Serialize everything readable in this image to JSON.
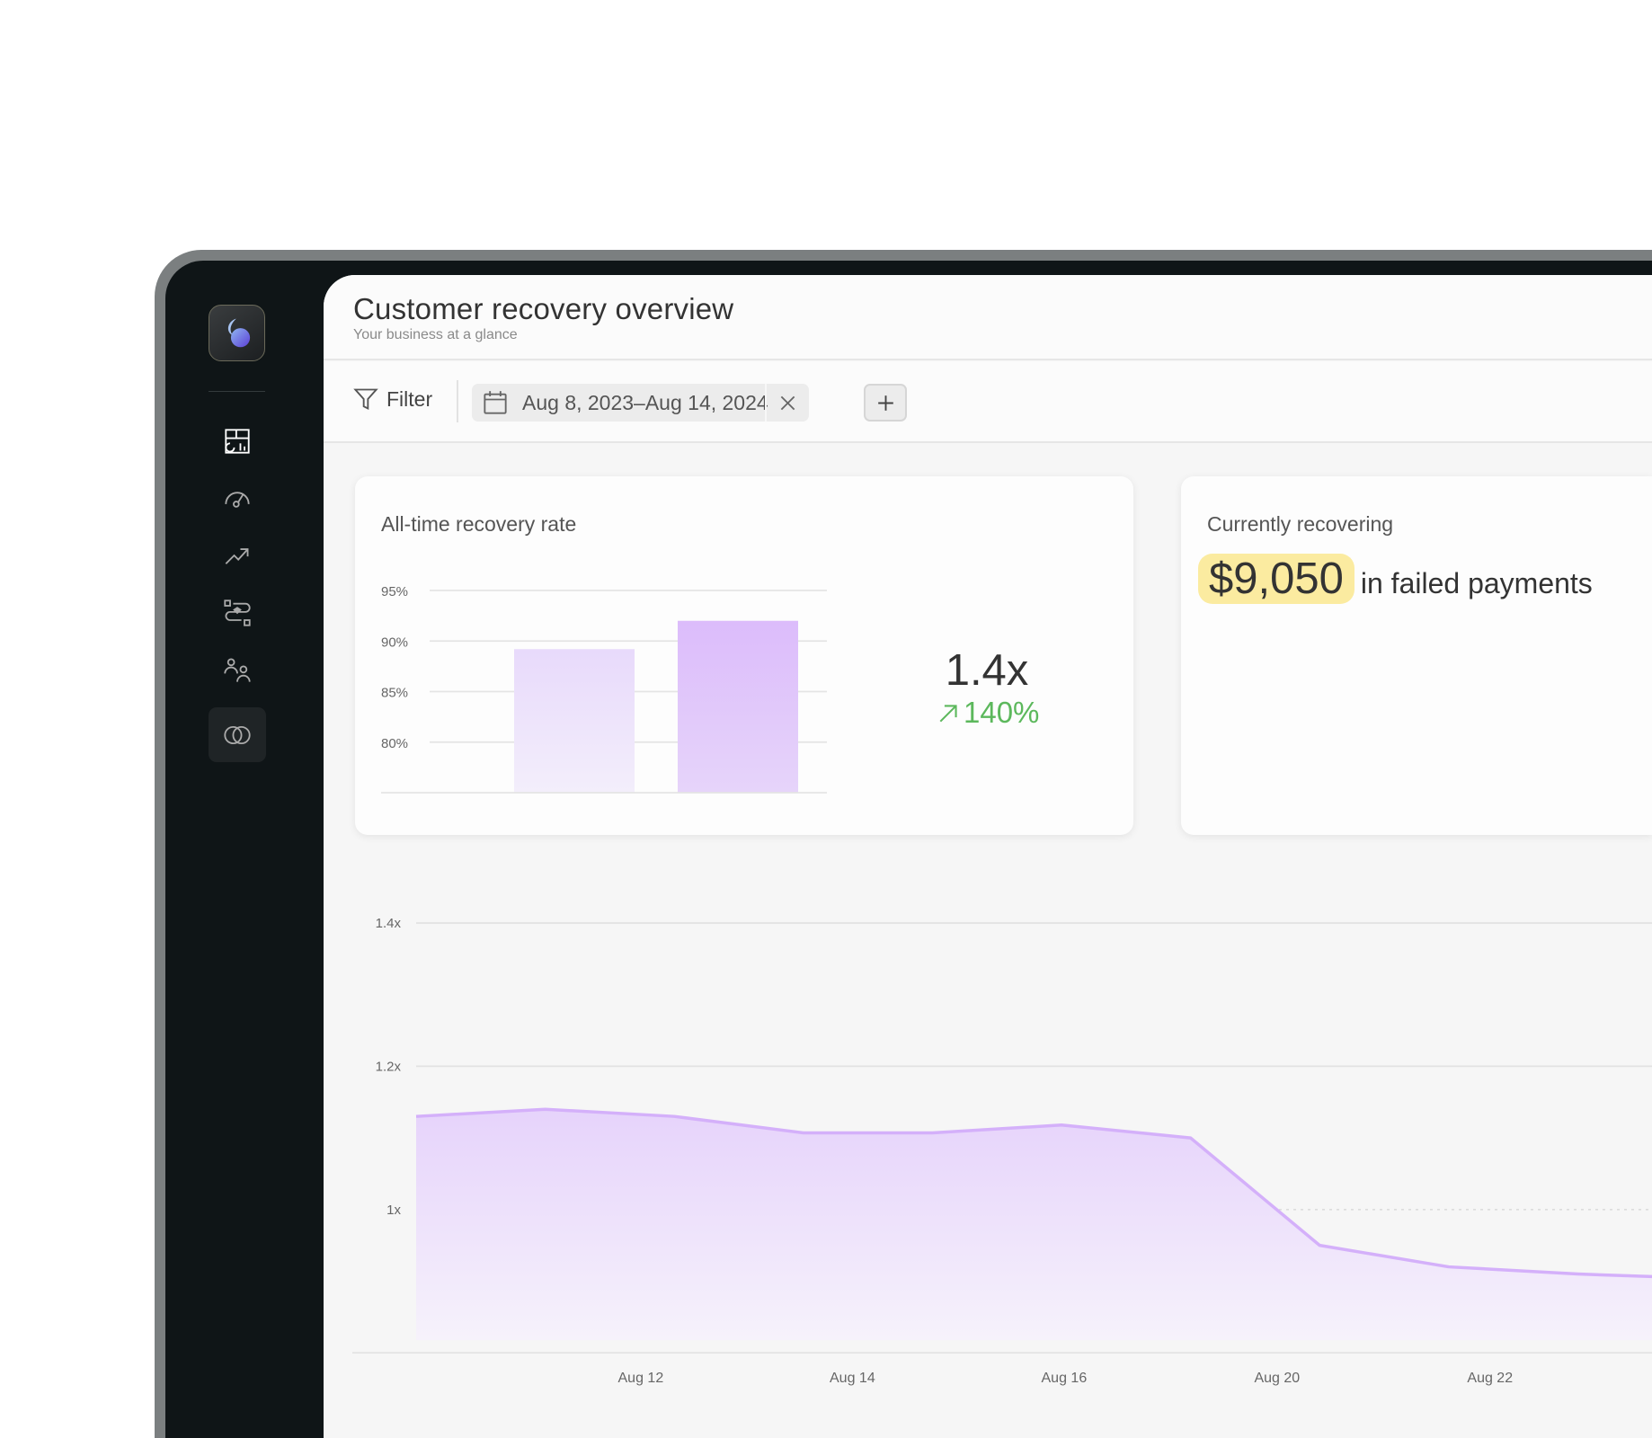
{
  "header": {
    "title": "Customer recovery overview",
    "subtitle": "Your business at a glance"
  },
  "toolbar": {
    "filter_label": "Filter",
    "date_range": "Aug 8, 2023–Aug 14, 2024",
    "add_label": "+"
  },
  "sidebar": {
    "items": [
      {
        "icon": "dashboard-icon",
        "active": false
      },
      {
        "icon": "gauge-icon",
        "active": false
      },
      {
        "icon": "trending-up-icon",
        "active": false
      },
      {
        "icon": "workflow-icon",
        "active": false
      },
      {
        "icon": "users-icon",
        "active": false
      },
      {
        "icon": "overlap-circles-icon",
        "active": true
      }
    ]
  },
  "recovery_card": {
    "title": "All-time recovery rate",
    "multiplier": "1.4x",
    "change": "140%"
  },
  "current_card": {
    "title": "Currently recovering",
    "amount": "$9,050",
    "suffix": "in failed payments"
  },
  "colors": {
    "accent": "#d9b8fb",
    "highlight": "#fbeba0",
    "positive": "#5cb85c",
    "sidebar": "#0f1517"
  },
  "chart_data": [
    {
      "type": "bar",
      "categories": [
        "",
        ""
      ],
      "values": [
        89.2,
        92.0
      ],
      "ylim": [
        75,
        95
      ],
      "yticks": [
        "95%",
        "90%",
        "85%",
        "80%"
      ],
      "ytick_values": [
        95,
        90,
        85,
        80
      ],
      "grid": true
    },
    {
      "type": "area",
      "x": [
        0,
        1,
        2,
        3,
        4,
        5,
        6,
        7,
        8,
        9,
        10.6
      ],
      "values": [
        1.13,
        1.14,
        1.13,
        1.107,
        1.107,
        1.118,
        1.1,
        0.95,
        0.92,
        0.91,
        0.9
      ],
      "ylim": [
        0.8,
        1.4
      ],
      "yticks": [
        "1.4x",
        "1.2x",
        "1x"
      ],
      "ytick_values": [
        1.4,
        1.2,
        1.0
      ],
      "xticks": [
        "Aug 12",
        "Aug 14",
        "Aug 16",
        "Aug 20",
        "Aug 22"
      ],
      "xtick_positions": [
        1.74,
        3.38,
        5.02,
        6.67,
        8.32
      ],
      "reference_line": 1.0,
      "grid": true
    }
  ]
}
